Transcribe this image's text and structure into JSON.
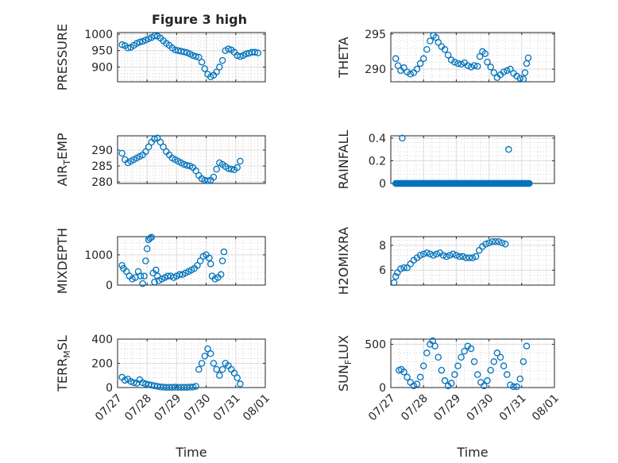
{
  "figure_title": "Figure 3 high",
  "colors": {
    "series": "#0072bd",
    "axes": "#262626",
    "grid": "#dcdcdc"
  },
  "chart_data": [
    {
      "type": "scatter",
      "ylabel": "PRESSURE",
      "xlabel": "",
      "title": "Figure 3 high",
      "xlim": [
        0,
        5
      ],
      "ylim": [
        855,
        1005
      ],
      "yticks": [
        900,
        950,
        1000
      ],
      "xticks": [
        0,
        1,
        2,
        3,
        4,
        5
      ],
      "xticklabels": [
        "07/27",
        "07/28",
        "07/29",
        "07/30",
        "07/31",
        "08/01"
      ],
      "show_xticklabels": false,
      "grid": true,
      "minor_grid": true,
      "points": [
        [
          0.15,
          968
        ],
        [
          0.25,
          965
        ],
        [
          0.35,
          958
        ],
        [
          0.45,
          960
        ],
        [
          0.55,
          966
        ],
        [
          0.65,
          972
        ],
        [
          0.75,
          976
        ],
        [
          0.85,
          978
        ],
        [
          0.95,
          982
        ],
        [
          1.05,
          986
        ],
        [
          1.15,
          990
        ],
        [
          1.25,
          995
        ],
        [
          1.35,
          994
        ],
        [
          1.45,
          988
        ],
        [
          1.55,
          980
        ],
        [
          1.65,
          972
        ],
        [
          1.75,
          966
        ],
        [
          1.85,
          958
        ],
        [
          1.95,
          952
        ],
        [
          2.05,
          950
        ],
        [
          2.15,
          948
        ],
        [
          2.25,
          946
        ],
        [
          2.35,
          944
        ],
        [
          2.45,
          940
        ],
        [
          2.55,
          935
        ],
        [
          2.65,
          932
        ],
        [
          2.75,
          930
        ],
        [
          2.85,
          915
        ],
        [
          2.95,
          895
        ],
        [
          3.05,
          878
        ],
        [
          3.15,
          870
        ],
        [
          3.25,
          875
        ],
        [
          3.35,
          885
        ],
        [
          3.45,
          900
        ],
        [
          3.55,
          920
        ],
        [
          3.65,
          950
        ],
        [
          3.75,
          955
        ],
        [
          3.85,
          952
        ],
        [
          3.95,
          945
        ],
        [
          4.05,
          935
        ],
        [
          4.15,
          932
        ],
        [
          4.25,
          935
        ],
        [
          4.35,
          940
        ],
        [
          4.45,
          942
        ],
        [
          4.55,
          945
        ],
        [
          4.65,
          945
        ],
        [
          4.75,
          943
        ]
      ]
    },
    {
      "type": "scatter",
      "ylabel": "THETA",
      "xlabel": "",
      "xlim": [
        0,
        5
      ],
      "ylim": [
        288.2,
        295.2
      ],
      "yticks": [
        290,
        295
      ],
      "xticks": [
        0,
        1,
        2,
        3,
        4,
        5
      ],
      "xticklabels": [
        "07/27",
        "07/28",
        "07/29",
        "07/30",
        "07/31",
        "08/01"
      ],
      "show_xticklabels": false,
      "grid": true,
      "minor_grid": true,
      "points": [
        [
          0.15,
          291.5
        ],
        [
          0.22,
          290.5
        ],
        [
          0.3,
          289.8
        ],
        [
          0.4,
          290.2
        ],
        [
          0.5,
          289.6
        ],
        [
          0.6,
          289.3
        ],
        [
          0.7,
          289.5
        ],
        [
          0.8,
          290.0
        ],
        [
          0.9,
          290.8
        ],
        [
          1.0,
          291.5
        ],
        [
          1.1,
          292.8
        ],
        [
          1.2,
          294.0
        ],
        [
          1.3,
          294.8
        ],
        [
          1.38,
          294.5
        ],
        [
          1.45,
          293.8
        ],
        [
          1.55,
          293.2
        ],
        [
          1.65,
          292.8
        ],
        [
          1.75,
          292.0
        ],
        [
          1.85,
          291.3
        ],
        [
          1.95,
          291.0
        ],
        [
          2.05,
          290.8
        ],
        [
          2.15,
          290.7
        ],
        [
          2.25,
          290.9
        ],
        [
          2.35,
          290.5
        ],
        [
          2.45,
          290.3
        ],
        [
          2.55,
          290.5
        ],
        [
          2.65,
          290.4
        ],
        [
          2.72,
          291.8
        ],
        [
          2.8,
          292.5
        ],
        [
          2.88,
          292.2
        ],
        [
          2.95,
          291.0
        ],
        [
          3.05,
          290.3
        ],
        [
          3.15,
          289.5
        ],
        [
          3.25,
          288.8
        ],
        [
          3.35,
          289.2
        ],
        [
          3.45,
          289.6
        ],
        [
          3.55,
          289.8
        ],
        [
          3.65,
          290.0
        ],
        [
          3.75,
          289.4
        ],
        [
          3.85,
          289.0
        ],
        [
          3.95,
          288.7
        ],
        [
          4.05,
          288.6
        ],
        [
          4.1,
          289.5
        ],
        [
          4.15,
          290.8
        ],
        [
          4.2,
          291.6
        ]
      ]
    },
    {
      "type": "scatter",
      "ylabel": "AIR_TEMP",
      "xlabel": "",
      "xlim": [
        0,
        5
      ],
      "ylim": [
        279.5,
        294.5
      ],
      "yticks": [
        280,
        285,
        290
      ],
      "xticks": [
        0,
        1,
        2,
        3,
        4,
        5
      ],
      "xticklabels": [
        "07/27",
        "07/28",
        "07/29",
        "07/30",
        "07/31",
        "08/01"
      ],
      "show_xticklabels": false,
      "grid": true,
      "minor_grid": true,
      "points": [
        [
          0.15,
          289.0
        ],
        [
          0.25,
          287.0
        ],
        [
          0.35,
          286.0
        ],
        [
          0.45,
          286.5
        ],
        [
          0.55,
          287.0
        ],
        [
          0.65,
          287.5
        ],
        [
          0.75,
          288.0
        ],
        [
          0.85,
          288.5
        ],
        [
          0.95,
          289.5
        ],
        [
          1.05,
          291.0
        ],
        [
          1.15,
          292.5
        ],
        [
          1.25,
          293.5
        ],
        [
          1.35,
          293.8
        ],
        [
          1.45,
          292.5
        ],
        [
          1.55,
          291.0
        ],
        [
          1.65,
          289.5
        ],
        [
          1.75,
          288.5
        ],
        [
          1.85,
          287.5
        ],
        [
          1.95,
          287.0
        ],
        [
          2.05,
          286.5
        ],
        [
          2.15,
          286.0
        ],
        [
          2.25,
          285.5
        ],
        [
          2.35,
          285.2
        ],
        [
          2.45,
          285.0
        ],
        [
          2.55,
          284.5
        ],
        [
          2.65,
          283.5
        ],
        [
          2.75,
          282.0
        ],
        [
          2.85,
          281.0
        ],
        [
          2.95,
          280.5
        ],
        [
          3.05,
          280.3
        ],
        [
          3.15,
          280.5
        ],
        [
          3.25,
          281.5
        ],
        [
          3.35,
          284.0
        ],
        [
          3.45,
          286.0
        ],
        [
          3.55,
          285.5
        ],
        [
          3.65,
          284.8
        ],
        [
          3.75,
          284.2
        ],
        [
          3.85,
          284.0
        ],
        [
          3.95,
          283.8
        ],
        [
          4.05,
          284.5
        ],
        [
          4.15,
          286.5
        ]
      ]
    },
    {
      "type": "scatter",
      "ylabel": "RAINFALL",
      "xlabel": "",
      "xlim": [
        0,
        5
      ],
      "ylim": [
        0,
        0.42
      ],
      "yticks": [
        0,
        0.2,
        0.4
      ],
      "xticks": [
        0,
        1,
        2,
        3,
        4,
        5
      ],
      "xticklabels": [
        "07/27",
        "07/28",
        "07/29",
        "07/30",
        "07/31",
        "08/01"
      ],
      "show_xticklabels": false,
      "grid": true,
      "minor_grid": true,
      "points": [
        [
          0.35,
          0.4
        ],
        [
          3.6,
          0.3
        ]
      ],
      "zero_run": [
        0.15,
        4.25
      ]
    },
    {
      "type": "scatter",
      "ylabel": "MIXDEPTH",
      "xlabel": "",
      "xlim": [
        0,
        5
      ],
      "ylim": [
        0,
        1600
      ],
      "yticks": [
        0,
        1000
      ],
      "xticks": [
        0,
        1,
        2,
        3,
        4,
        5
      ],
      "xticklabels": [
        "07/27",
        "07/28",
        "07/29",
        "07/30",
        "07/31",
        "08/01"
      ],
      "show_xticklabels": false,
      "grid": true,
      "minor_grid": true,
      "points": [
        [
          0.15,
          650
        ],
        [
          0.2,
          550
        ],
        [
          0.3,
          450
        ],
        [
          0.4,
          300
        ],
        [
          0.5,
          200
        ],
        [
          0.6,
          250
        ],
        [
          0.7,
          450
        ],
        [
          0.78,
          300
        ],
        [
          0.85,
          50
        ],
        [
          0.9,
          300
        ],
        [
          0.95,
          800
        ],
        [
          1.0,
          1200
        ],
        [
          1.05,
          1500
        ],
        [
          1.1,
          1550
        ],
        [
          1.15,
          1580
        ],
        [
          1.2,
          400
        ],
        [
          1.25,
          100
        ],
        [
          1.3,
          500
        ],
        [
          1.35,
          300
        ],
        [
          1.4,
          150
        ],
        [
          1.5,
          200
        ],
        [
          1.6,
          250
        ],
        [
          1.7,
          300
        ],
        [
          1.8,
          300
        ],
        [
          1.9,
          250
        ],
        [
          2.0,
          300
        ],
        [
          2.1,
          350
        ],
        [
          2.2,
          350
        ],
        [
          2.3,
          400
        ],
        [
          2.4,
          450
        ],
        [
          2.5,
          500
        ],
        [
          2.6,
          550
        ],
        [
          2.7,
          650
        ],
        [
          2.8,
          800
        ],
        [
          2.9,
          950
        ],
        [
          3.0,
          1000
        ],
        [
          3.1,
          900
        ],
        [
          3.15,
          700
        ],
        [
          3.2,
          300
        ],
        [
          3.3,
          200
        ],
        [
          3.4,
          250
        ],
        [
          3.5,
          350
        ],
        [
          3.55,
          800
        ],
        [
          3.6,
          1100
        ]
      ]
    },
    {
      "type": "scatter",
      "ylabel": "H2OMIXRA",
      "xlabel": "",
      "xlim": [
        0,
        5
      ],
      "ylim": [
        4.8,
        8.7
      ],
      "yticks": [
        6,
        8
      ],
      "xticks": [
        0,
        1,
        2,
        3,
        4,
        5
      ],
      "xticklabels": [
        "07/27",
        "07/28",
        "07/29",
        "07/30",
        "07/31",
        "08/01"
      ],
      "show_xticklabels": false,
      "grid": true,
      "minor_grid": true,
      "points": [
        [
          0.1,
          5.0
        ],
        [
          0.15,
          5.5
        ],
        [
          0.2,
          5.8
        ],
        [
          0.3,
          6.1
        ],
        [
          0.4,
          6.2
        ],
        [
          0.5,
          6.2
        ],
        [
          0.6,
          6.5
        ],
        [
          0.7,
          6.8
        ],
        [
          0.8,
          7.0
        ],
        [
          0.9,
          7.2
        ],
        [
          1.0,
          7.3
        ],
        [
          1.1,
          7.4
        ],
        [
          1.2,
          7.3
        ],
        [
          1.3,
          7.2
        ],
        [
          1.4,
          7.3
        ],
        [
          1.5,
          7.4
        ],
        [
          1.6,
          7.2
        ],
        [
          1.7,
          7.1
        ],
        [
          1.8,
          7.2
        ],
        [
          1.9,
          7.3
        ],
        [
          2.0,
          7.2
        ],
        [
          2.1,
          7.1
        ],
        [
          2.2,
          7.1
        ],
        [
          2.3,
          7.0
        ],
        [
          2.4,
          7.0
        ],
        [
          2.5,
          7.0
        ],
        [
          2.6,
          7.1
        ],
        [
          2.7,
          7.6
        ],
        [
          2.8,
          7.9
        ],
        [
          2.9,
          8.1
        ],
        [
          3.0,
          8.2
        ],
        [
          3.1,
          8.3
        ],
        [
          3.2,
          8.3
        ],
        [
          3.3,
          8.3
        ],
        [
          3.4,
          8.2
        ],
        [
          3.5,
          8.1
        ]
      ]
    },
    {
      "type": "scatter",
      "ylabel": "TERR_MSL",
      "xlabel": "Time",
      "xlim": [
        0,
        5
      ],
      "ylim": [
        0,
        400
      ],
      "yticks": [
        0,
        200,
        400
      ],
      "xticks": [
        0,
        1,
        2,
        3,
        4,
        5
      ],
      "xticklabels": [
        "07/27",
        "07/28",
        "07/29",
        "07/30",
        "07/31",
        "08/01"
      ],
      "show_xticklabels": true,
      "grid": true,
      "minor_grid": true,
      "points": [
        [
          0.15,
          85
        ],
        [
          0.25,
          60
        ],
        [
          0.35,
          70
        ],
        [
          0.45,
          50
        ],
        [
          0.55,
          40
        ],
        [
          0.65,
          35
        ],
        [
          0.75,
          65
        ],
        [
          0.85,
          40
        ],
        [
          0.95,
          30
        ],
        [
          1.05,
          25
        ],
        [
          1.15,
          20
        ],
        [
          1.25,
          15
        ],
        [
          1.35,
          10
        ],
        [
          1.45,
          5
        ],
        [
          1.55,
          3
        ],
        [
          1.65,
          2
        ],
        [
          1.75,
          2
        ],
        [
          1.85,
          2
        ],
        [
          1.95,
          3
        ],
        [
          2.05,
          2
        ],
        [
          2.15,
          2
        ],
        [
          2.25,
          2
        ],
        [
          2.35,
          2
        ],
        [
          2.45,
          3
        ],
        [
          2.55,
          4
        ],
        [
          2.65,
          10
        ],
        [
          2.75,
          150
        ],
        [
          2.85,
          200
        ],
        [
          2.95,
          260
        ],
        [
          3.05,
          320
        ],
        [
          3.15,
          280
        ],
        [
          3.25,
          200
        ],
        [
          3.35,
          150
        ],
        [
          3.45,
          100
        ],
        [
          3.55,
          150
        ],
        [
          3.65,
          200
        ],
        [
          3.75,
          180
        ],
        [
          3.85,
          150
        ],
        [
          3.95,
          120
        ],
        [
          4.05,
          80
        ],
        [
          4.15,
          30
        ]
      ]
    },
    {
      "type": "scatter",
      "ylabel": "SUN_FLUX",
      "xlabel": "Time",
      "xlim": [
        0,
        5
      ],
      "ylim": [
        0,
        560
      ],
      "yticks": [
        0,
        500
      ],
      "xticks": [
        0,
        1,
        2,
        3,
        4,
        5
      ],
      "xticklabels": [
        "07/27",
        "07/28",
        "07/29",
        "07/30",
        "07/31",
        "08/01"
      ],
      "show_xticklabels": true,
      "grid": true,
      "minor_grid": true,
      "points": [
        [
          0.25,
          200
        ],
        [
          0.32,
          210
        ],
        [
          0.4,
          180
        ],
        [
          0.5,
          120
        ],
        [
          0.6,
          60
        ],
        [
          0.7,
          20
        ],
        [
          0.8,
          40
        ],
        [
          0.9,
          120
        ],
        [
          1.0,
          250
        ],
        [
          1.1,
          400
        ],
        [
          1.2,
          500
        ],
        [
          1.28,
          540
        ],
        [
          1.35,
          480
        ],
        [
          1.45,
          350
        ],
        [
          1.55,
          200
        ],
        [
          1.65,
          80
        ],
        [
          1.75,
          20
        ],
        [
          1.85,
          50
        ],
        [
          1.95,
          150
        ],
        [
          2.05,
          250
        ],
        [
          2.15,
          350
        ],
        [
          2.25,
          420
        ],
        [
          2.35,
          480
        ],
        [
          2.45,
          450
        ],
        [
          2.55,
          300
        ],
        [
          2.65,
          150
        ],
        [
          2.75,
          60
        ],
        [
          2.85,
          20
        ],
        [
          2.95,
          80
        ],
        [
          3.05,
          200
        ],
        [
          3.15,
          300
        ],
        [
          3.25,
          400
        ],
        [
          3.35,
          350
        ],
        [
          3.45,
          250
        ],
        [
          3.55,
          150
        ],
        [
          3.65,
          30
        ],
        [
          3.75,
          10
        ],
        [
          3.85,
          10
        ],
        [
          3.95,
          100
        ],
        [
          4.05,
          300
        ],
        [
          4.15,
          480
        ]
      ]
    }
  ]
}
